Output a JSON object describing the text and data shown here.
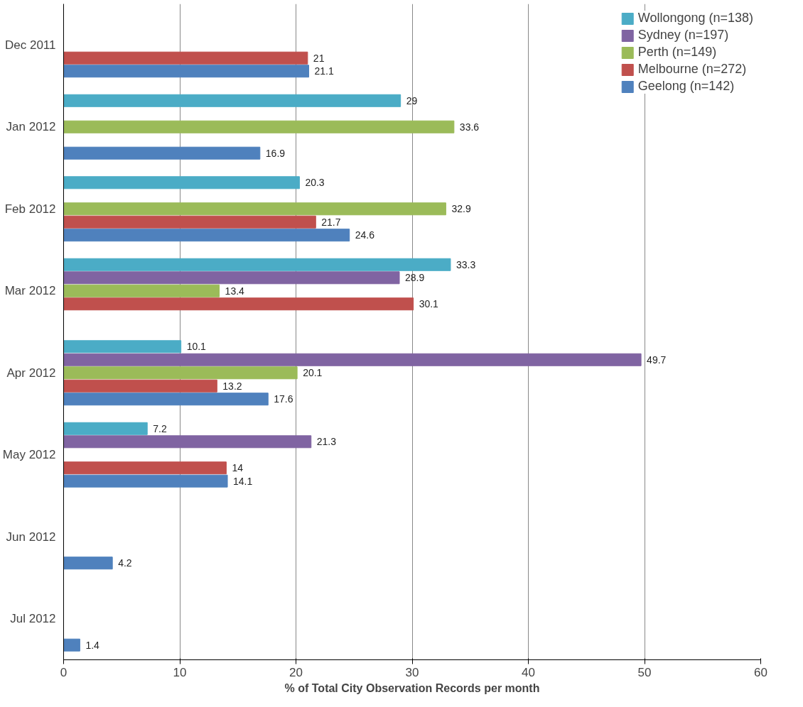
{
  "chart_data": {
    "type": "bar",
    "orientation": "horizontal",
    "xlabel": "% of Total City Observation Records per month",
    "categories": [
      "Dec 2011",
      "Jan 2012",
      "Feb 2012",
      "Mar 2012",
      "Apr 2012",
      "May 2012",
      "Jun 2012",
      "Jul 2012"
    ],
    "series": [
      {
        "name": "Wollongong (n=138)",
        "color": "#4bacc6",
        "values": [
          null,
          29,
          20.3,
          33.3,
          10.1,
          7.2,
          null,
          null
        ]
      },
      {
        "name": "Sydney (n=197)",
        "color": "#8064a2",
        "values": [
          null,
          null,
          null,
          28.9,
          49.7,
          21.3,
          null,
          null
        ]
      },
      {
        "name": "Perth (n=149)",
        "color": "#9bbb59",
        "values": [
          null,
          33.6,
          32.9,
          13.4,
          20.1,
          null,
          null,
          null
        ]
      },
      {
        "name": "Melbourne (n=272)",
        "color": "#c0504d",
        "values": [
          21,
          null,
          21.7,
          30.1,
          13.2,
          14,
          null,
          null
        ]
      },
      {
        "name": "Geelong (n=142)",
        "color": "#4f81bd",
        "values": [
          21.1,
          16.9,
          24.6,
          null,
          17.6,
          14.1,
          4.2,
          1.4
        ]
      }
    ],
    "xlim": [
      0,
      60
    ],
    "xticks": [
      0,
      10,
      20,
      30,
      40,
      50,
      60
    ],
    "grid": "x",
    "legend": "top right",
    "data_labels": true
  }
}
